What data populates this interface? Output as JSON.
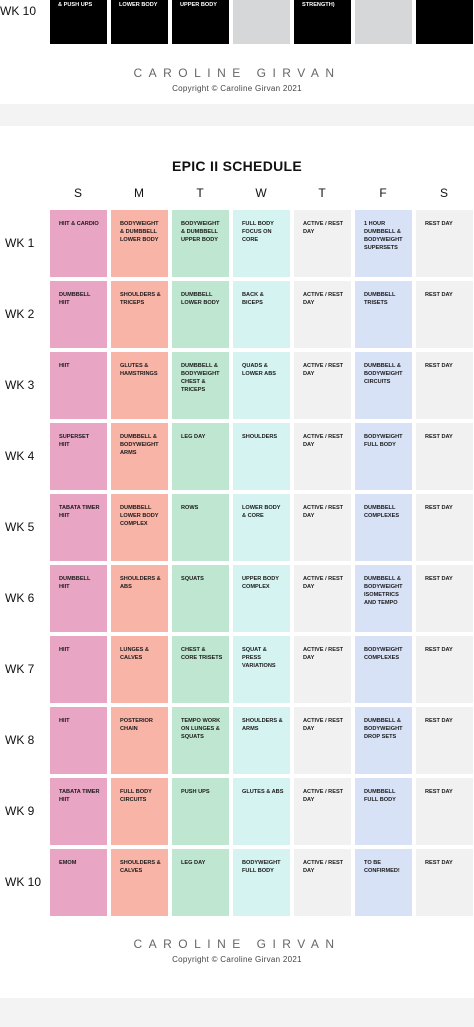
{
  "top_partial": {
    "week_label": "WK 10",
    "cells": [
      "& PUSH UPS",
      "LOWER BODY",
      "UPPER BODY",
      "",
      "STRENGTH)",
      "",
      ""
    ]
  },
  "brand": "CAROLINE GIRVAN",
  "copyright": "Copyright © Caroline Girvan 2021",
  "schedule": {
    "title": "EPIC II SCHEDULE",
    "days": [
      "S",
      "M",
      "T",
      "W",
      "T",
      "F",
      "S"
    ],
    "day_colors": [
      "#e8a5c4",
      "#f7b4a7",
      "#bfe6d0",
      "#d5f4f1",
      "#f1f1f1",
      "#d8e2f7",
      "#f1f1f1"
    ],
    "weeks": [
      {
        "label": "WK 1",
        "cells": [
          "HIIT & CARDIO",
          "BODYWEIGHT & DUMBBELL LOWER BODY",
          "BODYWEIGHT & DUMBBELL UPPER BODY",
          "FULL BODY FOCUS ON CORE",
          "ACTIVE / REST DAY",
          "1 HOUR DUMBBELL & BODYWEIGHT SUPERSETS",
          "REST DAY"
        ]
      },
      {
        "label": "WK 2",
        "cells": [
          "DUMBBELL HIIT",
          "SHOULDERS & TRICEPS",
          "DUMBBELL LOWER BODY",
          "BACK & BICEPS",
          "ACTIVE / REST DAY",
          "DUMBBELL TRISETS",
          "REST DAY"
        ]
      },
      {
        "label": "WK 3",
        "cells": [
          "HIIT",
          "GLUTES & HAMSTRINGS",
          "DUMBBELL & BODYWEIGHT CHEST & TRICEPS",
          "QUADS & LOWER ABS",
          "ACTIVE / REST DAY",
          "DUMBBELL & BODYWEIGHT CIRCUITS",
          "REST DAY"
        ]
      },
      {
        "label": "WK 4",
        "cells": [
          "SUPERSET HIIT",
          "DUMBBELL & BODYWEIGHT ARMS",
          "LEG DAY",
          "SHOULDERS",
          "ACTIVE / REST DAY",
          "BODYWEIGHT FULL BODY",
          "REST DAY"
        ]
      },
      {
        "label": "WK 5",
        "cells": [
          "TABATA TIMER HIIT",
          "DUMBBELL LOWER BODY COMPLEX",
          "ROWS",
          "LOWER BODY & CORE",
          "ACTIVE / REST DAY",
          "DUMBBELL COMPLEXES",
          "REST DAY"
        ]
      },
      {
        "label": "WK 6",
        "cells": [
          "DUMBBELL HIIT",
          "SHOULDERS & ABS",
          "SQUATS",
          "UPPER BODY COMPLEX",
          "ACTIVE / REST DAY",
          "DUMBBELL & BODYWEIGHT ISOMETRICS AND TEMPO",
          "REST DAY"
        ]
      },
      {
        "label": "WK 7",
        "cells": [
          "HIIT",
          "LUNGES & CALVES",
          "CHEST & CORE TRISETS",
          "SQUAT & PRESS VARIATIONS",
          "ACTIVE / REST DAY",
          "BODYWEIGHT COMPLEXES",
          "REST DAY"
        ]
      },
      {
        "label": "WK 8",
        "cells": [
          "HIIT",
          "POSTERIOR CHAIN",
          "TEMPO WORK ON LUNGES & SQUATS",
          "SHOULDERS & ARMS",
          "ACTIVE / REST DAY",
          "DUMBBELL & BODYWEIGHT DROP SETS",
          "REST DAY"
        ]
      },
      {
        "label": "WK 9",
        "cells": [
          "TABATA TIMER HIIT",
          "FULL BODY CIRCUITS",
          "PUSH UPS",
          "GLUTES & ABS",
          "ACTIVE / REST DAY",
          "DUMBBELL FULL BODY",
          "REST DAY"
        ]
      },
      {
        "label": "WK 10",
        "cells": [
          "EMOM",
          "SHOULDERS & CALVES",
          "LEG DAY",
          "BODYWEIGHT FULL BODY",
          "ACTIVE / REST DAY",
          "TO BE CONFIRMED!",
          "REST DAY"
        ]
      }
    ]
  }
}
